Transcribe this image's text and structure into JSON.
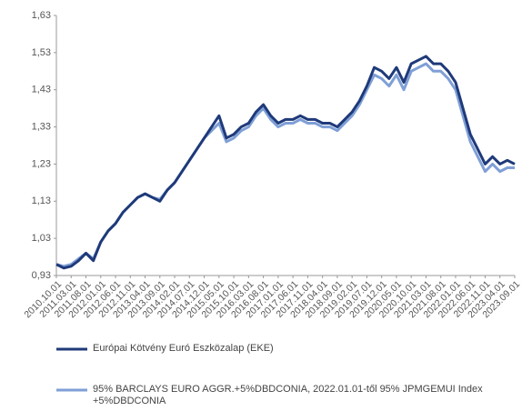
{
  "chart_data": {
    "type": "line",
    "categories": [
      "2010.10.01",
      null,
      "2011.03.01",
      null,
      "2011.08.01",
      null,
      "2012.01.01",
      null,
      "2012.06.01",
      null,
      "2012.11.01",
      null,
      "2013.04.01",
      null,
      "2013.09.01",
      null,
      "2014.02.01",
      null,
      "2014.07.01",
      null,
      "2014.12.01",
      null,
      "2015.05.01",
      null,
      "2015.10.01",
      null,
      "2016.03.01",
      null,
      "2016.08.01",
      null,
      "2017.01.01",
      null,
      "2017.06.01",
      null,
      "2017.11.01",
      null,
      "2018.04.01",
      null,
      "2018.09.01",
      null,
      "2019.02.01",
      null,
      "2019.07.01",
      null,
      "2019.12.01",
      null,
      "2020.05.01",
      null,
      "2020.10.01",
      null,
      "2021.03.01",
      null,
      "2021.08.01",
      null,
      "2022.01.01",
      null,
      "2022.06.01",
      null,
      "2022.11.01",
      null,
      "2023.04.01",
      null,
      "2023.09.01"
    ],
    "series": [
      {
        "name": "Európai Kötvény Euró Eszközalap (EKE)",
        "color": "#1f3a7a",
        "values": [
          0.96,
          0.95,
          0.955,
          0.97,
          0.99,
          0.97,
          1.02,
          1.05,
          1.07,
          1.1,
          1.12,
          1.14,
          1.15,
          1.14,
          1.13,
          1.16,
          1.18,
          1.21,
          1.24,
          1.27,
          1.3,
          1.33,
          1.36,
          1.3,
          1.31,
          1.33,
          1.34,
          1.37,
          1.39,
          1.36,
          1.34,
          1.35,
          1.35,
          1.36,
          1.35,
          1.35,
          1.34,
          1.34,
          1.33,
          1.35,
          1.37,
          1.4,
          1.44,
          1.49,
          1.48,
          1.46,
          1.49,
          1.45,
          1.5,
          1.51,
          1.52,
          1.5,
          1.5,
          1.48,
          1.45,
          1.38,
          1.31,
          1.27,
          1.23,
          1.25,
          1.23,
          1.24,
          1.23
        ]
      },
      {
        "name": "95% BARCLAYS EURO AGGR.+5%DBDCONIA, 2022.01.01-től 95% JPMGEMUI Index +5%DBDCONIA",
        "color": "#7f9fd6",
        "values": [
          0.96,
          0.955,
          0.96,
          0.975,
          0.99,
          0.975,
          1.02,
          1.05,
          1.07,
          1.1,
          1.12,
          1.14,
          1.15,
          1.14,
          1.135,
          1.16,
          1.18,
          1.21,
          1.24,
          1.27,
          1.3,
          1.32,
          1.34,
          1.29,
          1.3,
          1.32,
          1.33,
          1.36,
          1.38,
          1.35,
          1.33,
          1.34,
          1.34,
          1.35,
          1.34,
          1.34,
          1.33,
          1.33,
          1.32,
          1.34,
          1.36,
          1.39,
          1.43,
          1.47,
          1.46,
          1.44,
          1.47,
          1.43,
          1.48,
          1.49,
          1.5,
          1.48,
          1.48,
          1.46,
          1.43,
          1.36,
          1.29,
          1.25,
          1.21,
          1.23,
          1.21,
          1.22,
          1.22
        ]
      }
    ],
    "ylim": [
      0.93,
      1.63
    ],
    "yticks": [
      {
        "value": 0.93,
        "label": "0,93"
      },
      {
        "value": 1.03,
        "label": "1,03"
      },
      {
        "value": 1.13,
        "label": "1,13"
      },
      {
        "value": 1.23,
        "label": "1,23"
      },
      {
        "value": 1.33,
        "label": "1,33"
      },
      {
        "value": 1.43,
        "label": "1,43"
      },
      {
        "value": 1.53,
        "label": "1,53"
      },
      {
        "value": 1.63,
        "label": "1,63"
      }
    ]
  }
}
